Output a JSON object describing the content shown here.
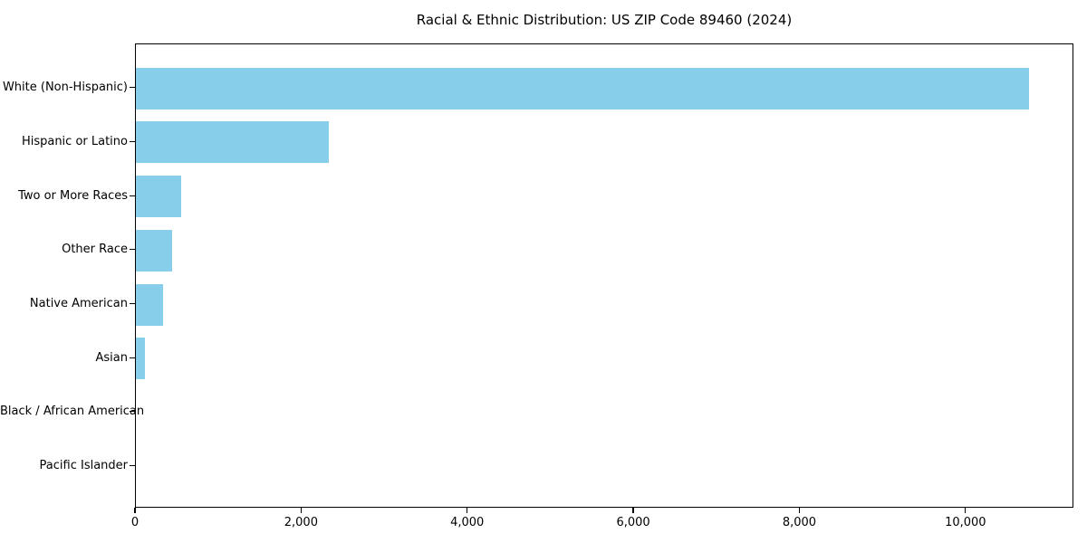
{
  "chart_data": {
    "type": "bar",
    "orientation": "horizontal",
    "title": "Racial & Ethnic Distribution: US ZIP Code 89460 (2024)",
    "categories": [
      "White (Non-Hispanic)",
      "Hispanic or Latino",
      "Two or More Races",
      "Other Race",
      "Native American",
      "Asian",
      "Black / African American",
      "Pacific Islander"
    ],
    "values": [
      10760,
      2320,
      540,
      440,
      330,
      110,
      0,
      0
    ],
    "xlabel": "",
    "ylabel": "",
    "xlim": [
      0,
      11300
    ],
    "xticks": [
      0,
      2000,
      4000,
      6000,
      8000,
      10000
    ],
    "xtick_labels": [
      "0",
      "2,000",
      "4,000",
      "6,000",
      "8,000",
      "10,000"
    ],
    "bar_color": "#87CEEB",
    "axis_color": "#000000",
    "text_color": "#000000",
    "grid": false,
    "legend": null
  }
}
